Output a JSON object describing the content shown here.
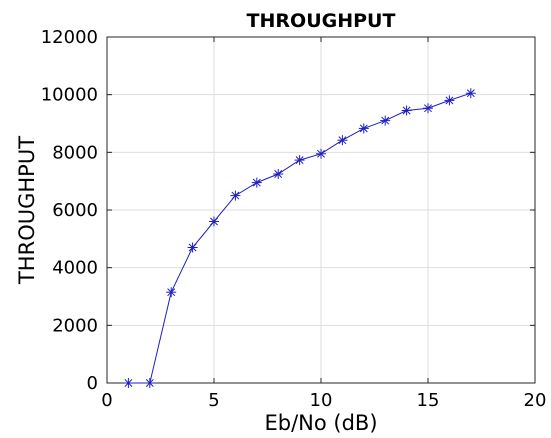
{
  "chart_data": {
    "type": "line",
    "title": "THROUGHPUT",
    "xlabel": "Eb/No (dB)",
    "ylabel": "THROUGHPUT",
    "xlim": [
      0,
      20
    ],
    "ylim": [
      0,
      12000
    ],
    "xticks": [
      0,
      5,
      10,
      15,
      20
    ],
    "yticks": [
      0,
      2000,
      4000,
      6000,
      8000,
      10000,
      12000
    ],
    "grid": true,
    "marker": "asterisk",
    "series_color": "#1f1fbf",
    "series": [
      {
        "x": [
          1,
          2,
          3,
          4,
          5,
          6,
          7,
          8,
          9,
          10,
          11,
          12,
          13,
          14,
          15,
          16,
          17
        ],
        "values": [
          0,
          0,
          3150,
          4700,
          5600,
          6500,
          6950,
          7250,
          7730,
          7950,
          8420,
          8830,
          9100,
          9450,
          9530,
          9800,
          10050
        ]
      }
    ]
  }
}
